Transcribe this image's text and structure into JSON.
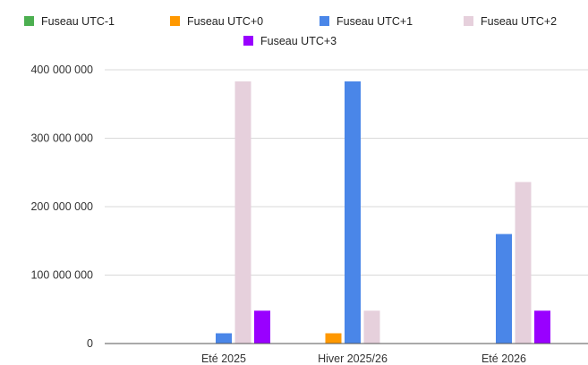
{
  "chart_data": {
    "type": "bar",
    "title": "",
    "xlabel": "",
    "ylabel": "",
    "ylim": [
      0,
      400000000
    ],
    "yticks": [
      0,
      100000000,
      200000000,
      300000000,
      400000000
    ],
    "ytick_labels": [
      "0",
      "100 000 000",
      "200 000 000",
      "300 000 000",
      "400 000 000"
    ],
    "grid": true,
    "legend_position": "top",
    "categories": [
      "Eté 2025",
      "Hiver 2025/26",
      "Eté 2026"
    ],
    "series": [
      {
        "name": "Fuseau UTC-1",
        "color": "#4caf50",
        "values": [
          0,
          0,
          0
        ]
      },
      {
        "name": "Fuseau UTC+0",
        "color": "#ff9800",
        "values": [
          0,
          15000000,
          0
        ]
      },
      {
        "name": "Fuseau UTC+1",
        "color": "#4a86e8",
        "values": [
          15000000,
          383000000,
          160000000
        ]
      },
      {
        "name": "Fuseau UTC+2",
        "color": "#e6d0dc",
        "values": [
          383000000,
          48000000,
          236000000
        ]
      },
      {
        "name": "Fuseau UTC+3",
        "color": "#9900ff",
        "values": [
          48000000,
          0,
          48000000
        ]
      }
    ]
  }
}
